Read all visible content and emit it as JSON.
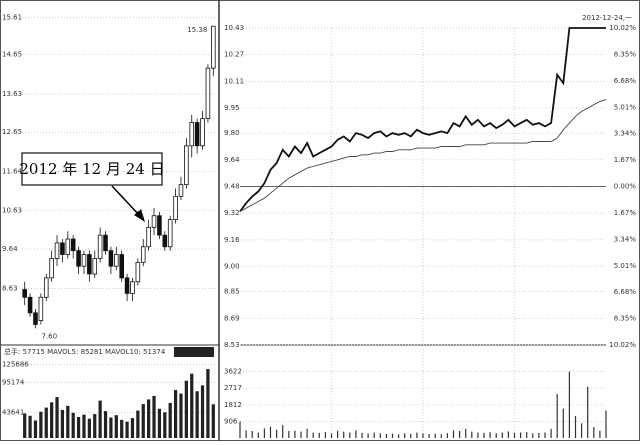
{
  "chart_data": [
    {
      "type": "candlestick",
      "open": [
        8.6,
        8.4,
        8.0,
        7.8,
        8.4,
        8.9,
        9.4,
        9.8,
        9.5,
        9.9,
        9.6,
        9.2,
        9.5,
        9.0,
        9.4,
        10.0,
        9.6,
        9.2,
        9.5,
        8.9,
        8.5,
        8.8,
        9.3,
        9.7,
        10.2,
        10.5,
        10.0,
        9.7,
        10.4,
        11.0,
        11.3,
        12.3,
        12.9,
        12.3,
        13.0,
        14.3
      ],
      "close": [
        8.4,
        8.0,
        7.7,
        8.4,
        8.9,
        9.4,
        9.8,
        9.5,
        9.9,
        9.6,
        9.2,
        9.5,
        9.0,
        9.4,
        10.0,
        9.6,
        9.2,
        9.5,
        8.9,
        8.5,
        8.8,
        9.3,
        9.7,
        10.2,
        10.5,
        10.0,
        9.7,
        10.4,
        11.0,
        11.3,
        12.3,
        12.9,
        12.3,
        13.0,
        14.3,
        15.38
      ],
      "low": [
        8.2,
        7.9,
        7.6,
        7.7,
        8.3,
        8.8,
        9.2,
        9.3,
        9.4,
        9.4,
        9.0,
        9.0,
        8.8,
        8.9,
        9.3,
        9.5,
        9.0,
        9.1,
        8.8,
        8.3,
        8.3,
        8.7,
        9.2,
        9.6,
        10.0,
        9.9,
        9.6,
        9.6,
        10.3,
        10.9,
        11.2,
        12.0,
        12.1,
        12.2,
        12.9,
        14.1
      ],
      "high": [
        8.8,
        8.5,
        8.1,
        8.5,
        9.0,
        9.6,
        10.0,
        9.9,
        10.1,
        10.0,
        9.7,
        9.6,
        9.6,
        9.6,
        10.2,
        10.1,
        9.7,
        9.7,
        9.6,
        9.0,
        8.9,
        9.4,
        9.9,
        10.4,
        10.7,
        10.6,
        10.1,
        10.5,
        11.2,
        11.5,
        12.5,
        13.1,
        13.0,
        13.2,
        14.4,
        15.38
      ],
      "ylim": [
        7.3,
        15.9
      ],
      "yticks": [
        15.61,
        14.65,
        13.63,
        12.65,
        11.64,
        10.63,
        9.64,
        8.63
      ],
      "extreme_labels": [
        {
          "value": 15.38,
          "label": "15.38"
        },
        {
          "value": 7.6,
          "label": "7.60"
        }
      ],
      "annotation": "2012 年 12 月 24 日"
    },
    {
      "type": "bar",
      "title": "总手: 57715 MAVOL5: 85281 MAVOL10: 51374",
      "values": [
        42000,
        38000,
        30000,
        45000,
        52000,
        61000,
        70000,
        48000,
        55000,
        43000,
        36000,
        40000,
        33000,
        41000,
        64000,
        46000,
        35000,
        39000,
        31000,
        28000,
        34000,
        47000,
        58000,
        66000,
        72000,
        50000,
        44000,
        60000,
        82000,
        76000,
        98000,
        110000,
        80000,
        90000,
        118000,
        57715
      ],
      "ylim": [
        0,
        130000
      ],
      "yticks": [
        125686,
        95174,
        43641
      ],
      "color": "#222"
    },
    {
      "type": "line",
      "annotation": "2012-12-24,一",
      "x": [
        0,
        4,
        8,
        12,
        16,
        20,
        24,
        28,
        32,
        36,
        40,
        44,
        48,
        52,
        56,
        60,
        64,
        68,
        72,
        76,
        80,
        84,
        88,
        92,
        96,
        100,
        104,
        108,
        112,
        116,
        120,
        124,
        128,
        132,
        136,
        140,
        144,
        148,
        152,
        156,
        160,
        164,
        168,
        172,
        176,
        180,
        184,
        188,
        192,
        196,
        200,
        204,
        208,
        212,
        216,
        220,
        224,
        228,
        232,
        236,
        240
      ],
      "xlim": [
        0,
        240
      ],
      "xgrid": [
        60,
        120,
        180
      ],
      "series": [
        {
          "color": "#111",
          "values": [
            9.33,
            9.38,
            9.42,
            9.45,
            9.5,
            9.58,
            9.62,
            9.7,
            9.66,
            9.72,
            9.68,
            9.74,
            9.66,
            9.68,
            9.7,
            9.72,
            9.76,
            9.78,
            9.75,
            9.8,
            9.79,
            9.77,
            9.8,
            9.81,
            9.78,
            9.8,
            9.79,
            9.8,
            9.78,
            9.82,
            9.8,
            9.79,
            9.8,
            9.81,
            9.8,
            9.86,
            9.84,
            9.9,
            9.85,
            9.88,
            9.84,
            9.86,
            9.83,
            9.85,
            9.88,
            9.84,
            9.86,
            9.88,
            9.85,
            9.86,
            9.84,
            9.86,
            10.15,
            10.1,
            10.43,
            10.43,
            10.43,
            10.43,
            10.43,
            10.43,
            10.43
          ]
        },
        {
          "color": "#444",
          "values": [
            9.33,
            9.35,
            9.37,
            9.39,
            9.41,
            9.44,
            9.47,
            9.5,
            9.53,
            9.55,
            9.57,
            9.59,
            9.6,
            9.61,
            9.62,
            9.63,
            9.64,
            9.65,
            9.66,
            9.66,
            9.67,
            9.67,
            9.68,
            9.68,
            9.69,
            9.69,
            9.7,
            9.7,
            9.7,
            9.71,
            9.71,
            9.71,
            9.71,
            9.72,
            9.72,
            9.72,
            9.72,
            9.73,
            9.73,
            9.73,
            9.73,
            9.74,
            9.74,
            9.74,
            9.74,
            9.74,
            9.74,
            9.74,
            9.75,
            9.75,
            9.75,
            9.75,
            9.77,
            9.82,
            9.86,
            9.9,
            9.93,
            9.95,
            9.97,
            9.99,
            10.0
          ]
        }
      ],
      "ylim": [
        8.53,
        10.43
      ],
      "yticks": [
        10.43,
        10.27,
        10.11,
        9.95,
        {
          "value": 9.8,
          "label": "9.80"
        },
        9.64,
        9.48,
        9.32,
        9.16,
        {
          "value": 9.0,
          "label": "9.00"
        },
        8.85,
        8.69,
        8.53
      ],
      "base": 9.48,
      "y2lim": [
        -10.02,
        10.02
      ],
      "y2ticks": [
        {
          "value": 10.02,
          "label": "10.02%"
        },
        {
          "value": 8.35,
          "label": "8.35%"
        },
        {
          "value": 6.68,
          "label": "6.68%"
        },
        {
          "value": 5.01,
          "label": "5.01%"
        },
        {
          "value": 3.34,
          "label": "3.34%"
        },
        {
          "value": 1.67,
          "label": "1.67%"
        },
        {
          "value": 0,
          "label": "0.00%"
        },
        {
          "value": -1.67,
          "label": "1.67%"
        },
        {
          "value": -3.34,
          "label": "3.34%"
        },
        {
          "value": -5.01,
          "label": "5.01%"
        },
        {
          "value": -6.68,
          "label": "6.68%"
        },
        {
          "value": -8.35,
          "label": "8.35%"
        },
        {
          "value": -10.02,
          "label": "10.02%"
        }
      ]
    },
    {
      "type": "bar",
      "values": [
        900,
        420,
        380,
        300,
        520,
        610,
        450,
        700,
        380,
        400,
        350,
        500,
        300,
        280,
        320,
        260,
        400,
        350,
        300,
        420,
        280,
        250,
        300,
        260,
        220,
        240,
        200,
        260,
        230,
        300,
        250,
        220,
        240,
        200,
        260,
        420,
        380,
        500,
        350,
        300,
        280,
        320,
        260,
        300,
        360,
        280,
        300,
        320,
        260,
        280,
        300,
        500,
        2400,
        1600,
        3622,
        1200,
        800,
        2800,
        600,
        400,
        1500
      ],
      "ylim": [
        0,
        4529
      ],
      "yticks": [
        3622,
        2717,
        1812,
        906
      ],
      "color": "#333"
    }
  ]
}
